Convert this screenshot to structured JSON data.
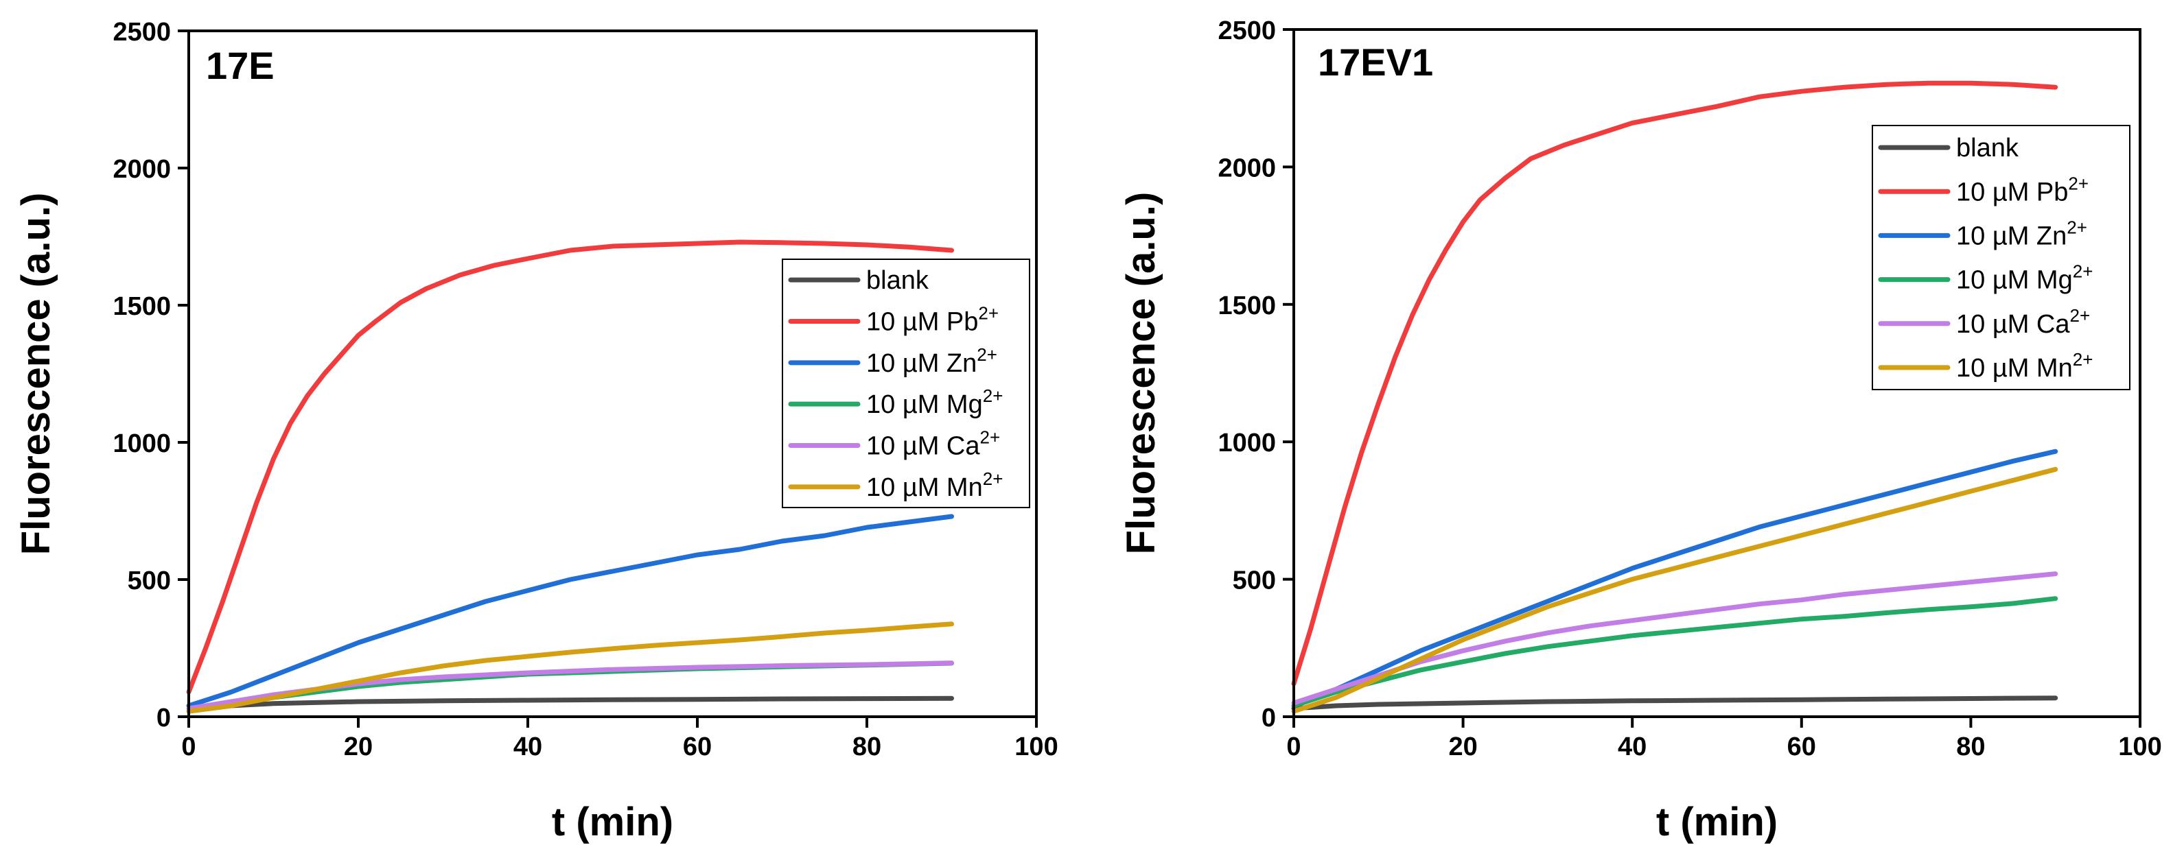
{
  "chart_data": [
    {
      "type": "line",
      "title": "17E",
      "xlabel": "t (min)",
      "ylabel": "Fluorescence (a.u.)",
      "xlim": [
        0,
        100
      ],
      "ylim": [
        0,
        2500
      ],
      "xticks": [
        0,
        20,
        40,
        60,
        80,
        100
      ],
      "yticks": [
        0,
        500,
        1000,
        1500,
        2000,
        2500
      ],
      "legend_position": "center-right",
      "series": [
        {
          "name": "blank",
          "label_main": "blank",
          "label_sup": "",
          "color": "#4a4a4a",
          "x": [
            0,
            5,
            10,
            20,
            30,
            40,
            50,
            60,
            70,
            80,
            90
          ],
          "y": [
            20,
            40,
            48,
            55,
            58,
            60,
            62,
            63,
            65,
            66,
            67
          ]
        },
        {
          "name": "10 µM Pb2+",
          "label_main": "10 µM Pb",
          "label_sup": "2+",
          "color": "#f03c3c",
          "x": [
            0,
            2,
            4,
            6,
            8,
            10,
            12,
            14,
            16,
            18,
            20,
            22,
            25,
            28,
            32,
            36,
            40,
            45,
            50,
            55,
            60,
            65,
            70,
            75,
            80,
            85,
            90
          ],
          "y": [
            90,
            250,
            420,
            600,
            780,
            940,
            1070,
            1170,
            1250,
            1320,
            1390,
            1440,
            1510,
            1560,
            1610,
            1645,
            1670,
            1700,
            1715,
            1720,
            1725,
            1730,
            1728,
            1725,
            1720,
            1712,
            1700
          ]
        },
        {
          "name": "10 µM Zn2+",
          "label_main": "10 µM Zn",
          "label_sup": "2+",
          "color": "#1f6fd6",
          "x": [
            0,
            5,
            10,
            15,
            20,
            25,
            30,
            35,
            40,
            45,
            50,
            55,
            60,
            65,
            70,
            75,
            80,
            85,
            90
          ],
          "y": [
            40,
            90,
            150,
            210,
            270,
            320,
            370,
            420,
            460,
            500,
            530,
            560,
            590,
            610,
            640,
            660,
            690,
            710,
            730
          ]
        },
        {
          "name": "10 µM Mg2+",
          "label_main": "10 µM Mg",
          "label_sup": "2+",
          "color": "#22aa66",
          "x": [
            0,
            5,
            10,
            15,
            20,
            25,
            30,
            40,
            50,
            60,
            70,
            80,
            90
          ],
          "y": [
            30,
            50,
            70,
            90,
            110,
            125,
            135,
            155,
            165,
            175,
            182,
            188,
            195
          ]
        },
        {
          "name": "10 µM Ca2+",
          "label_main": "10 µM Ca",
          "label_sup": "2+",
          "color": "#c27ee6",
          "x": [
            0,
            5,
            10,
            15,
            20,
            25,
            30,
            40,
            50,
            60,
            70,
            80,
            90
          ],
          "y": [
            30,
            55,
            80,
            100,
            120,
            135,
            145,
            160,
            172,
            180,
            186,
            190,
            196
          ]
        },
        {
          "name": "10 µM Mn2+",
          "label_main": "10 µM Mn",
          "label_sup": "2+",
          "color": "#d4a012",
          "x": [
            0,
            5,
            10,
            15,
            20,
            25,
            30,
            35,
            40,
            45,
            50,
            55,
            60,
            65,
            70,
            75,
            80,
            85,
            90
          ],
          "y": [
            20,
            40,
            70,
            100,
            130,
            160,
            185,
            205,
            220,
            235,
            248,
            260,
            270,
            280,
            292,
            305,
            315,
            327,
            338
          ]
        }
      ]
    },
    {
      "type": "line",
      "title": "17EV1",
      "xlabel": "t (min)",
      "ylabel": "Fluorescence (a.u.)",
      "xlim": [
        0,
        100
      ],
      "ylim": [
        0,
        2500
      ],
      "xticks": [
        0,
        20,
        40,
        60,
        80,
        100
      ],
      "yticks": [
        0,
        500,
        1000,
        1500,
        2000,
        2500
      ],
      "legend_position": "top-right",
      "series": [
        {
          "name": "blank",
          "label_main": "blank",
          "label_sup": "",
          "color": "#4a4a4a",
          "x": [
            0,
            5,
            10,
            20,
            30,
            40,
            50,
            60,
            70,
            80,
            90
          ],
          "y": [
            30,
            40,
            45,
            50,
            55,
            58,
            60,
            62,
            64,
            66,
            68
          ]
        },
        {
          "name": "10 µM Pb2+",
          "label_main": "10 µM Pb",
          "label_sup": "2+",
          "color": "#f03c3c",
          "x": [
            0,
            2,
            4,
            6,
            8,
            10,
            12,
            14,
            16,
            18,
            20,
            22,
            25,
            28,
            32,
            36,
            40,
            45,
            50,
            55,
            60,
            65,
            70,
            75,
            80,
            85,
            90
          ],
          "y": [
            120,
            320,
            540,
            760,
            960,
            1140,
            1310,
            1460,
            1590,
            1700,
            1800,
            1880,
            1960,
            2030,
            2080,
            2120,
            2160,
            2190,
            2220,
            2255,
            2275,
            2290,
            2300,
            2305,
            2305,
            2300,
            2290
          ]
        },
        {
          "name": "10 µM Zn2+",
          "label_main": "10 µM Zn",
          "label_sup": "2+",
          "color": "#1f6fd6",
          "x": [
            0,
            5,
            10,
            15,
            20,
            25,
            30,
            35,
            40,
            45,
            50,
            55,
            60,
            65,
            70,
            75,
            80,
            85,
            90
          ],
          "y": [
            40,
            100,
            170,
            240,
            300,
            360,
            420,
            480,
            540,
            590,
            640,
            690,
            730,
            770,
            810,
            850,
            890,
            930,
            965
          ]
        },
        {
          "name": "10 µM Mg2+",
          "label_main": "10 µM Mg",
          "label_sup": "2+",
          "color": "#22aa66",
          "x": [
            0,
            5,
            10,
            15,
            20,
            25,
            30,
            35,
            40,
            45,
            50,
            55,
            60,
            65,
            70,
            75,
            80,
            85,
            90
          ],
          "y": [
            40,
            90,
            130,
            170,
            200,
            230,
            255,
            275,
            295,
            310,
            325,
            340,
            355,
            365,
            378,
            390,
            400,
            412,
            430
          ]
        },
        {
          "name": "10 µM Ca2+",
          "label_main": "10 µM Ca",
          "label_sup": "2+",
          "color": "#c27ee6",
          "x": [
            0,
            5,
            10,
            15,
            20,
            25,
            30,
            35,
            40,
            45,
            50,
            55,
            60,
            65,
            70,
            75,
            80,
            85,
            90
          ],
          "y": [
            50,
            100,
            150,
            200,
            240,
            275,
            305,
            330,
            350,
            370,
            390,
            410,
            425,
            445,
            460,
            475,
            490,
            505,
            520
          ]
        },
        {
          "name": "10 µM Mn2+",
          "label_main": "10 µM Mn",
          "label_sup": "2+",
          "color": "#d4a012",
          "x": [
            0,
            5,
            10,
            15,
            20,
            25,
            30,
            35,
            40,
            45,
            50,
            55,
            60,
            65,
            70,
            75,
            80,
            85,
            90
          ],
          "y": [
            20,
            70,
            140,
            210,
            280,
            340,
            400,
            450,
            500,
            540,
            580,
            620,
            660,
            700,
            740,
            780,
            820,
            860,
            900
          ]
        }
      ]
    }
  ]
}
